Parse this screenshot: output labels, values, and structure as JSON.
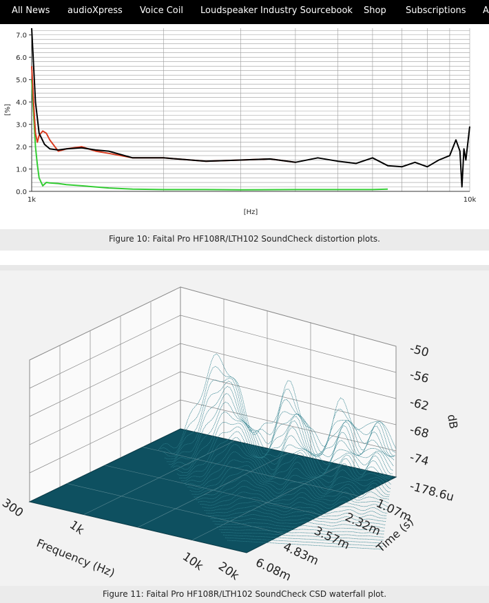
{
  "nav": {
    "items": [
      "All News",
      "audioXpress",
      "Voice Coil",
      "Loudspeaker Industry Sourcebook",
      "Shop",
      "Subscriptions",
      "A"
    ]
  },
  "figure10": {
    "caption": "Figure 10: Faital Pro HF108R/LTH102 SoundCheck distortion plots.",
    "colors": {
      "total": "#000000",
      "second": "#d93a1e",
      "third": "#33cc33"
    },
    "chart_data": {
      "type": "line",
      "x_scale": "log",
      "xlim": [
        1000,
        10000
      ],
      "ylim": [
        0,
        7.3
      ],
      "ylabel": "[%]",
      "xlabel": "[Hz]",
      "ytick_labels": [
        "0.0",
        "1.0",
        "2.0",
        "3.0",
        "4.0",
        "5.0",
        "6.0",
        "7.0"
      ],
      "xtick_labels": [
        "1k",
        "10k"
      ],
      "grid": true,
      "series": [
        {
          "x": [
            1000,
            1020,
            1040,
            1070,
            1100,
            1150,
            1200,
            1300,
            1400,
            1500,
            1700,
            2000,
            2500,
            3000,
            3500,
            4000,
            4500,
            5000,
            5500,
            6000,
            6500,
            7000,
            7500,
            8000,
            8500,
            9000,
            9300,
            9500,
            9600,
            9700,
            9800,
            10000
          ],
          "values": [
            7.3,
            4.0,
            2.6,
            2.1,
            1.9,
            1.85,
            1.9,
            1.95,
            1.85,
            1.8,
            1.5,
            1.5,
            1.35,
            1.4,
            1.45,
            1.3,
            1.5,
            1.35,
            1.25,
            1.5,
            1.15,
            1.1,
            1.3,
            1.1,
            1.4,
            1.6,
            2.3,
            1.8,
            0.2,
            1.9,
            1.4,
            2.9
          ]
        },
        {
          "x": [
            1000,
            1010,
            1020,
            1030,
            1040,
            1060,
            1080,
            1100,
            1150,
            1200,
            1300,
            1400,
            1500,
            1700,
            2000,
            2500,
            3000,
            3500,
            4000
          ],
          "values": [
            5.6,
            4.0,
            2.6,
            2.2,
            2.5,
            2.7,
            2.6,
            2.3,
            1.8,
            1.9,
            2.0,
            1.8,
            1.7,
            1.5,
            1.5,
            1.35,
            1.4,
            1.45,
            1.3
          ]
        },
        {
          "x": [
            1000,
            1010,
            1020,
            1030,
            1040,
            1060,
            1080,
            1100,
            1150,
            1200,
            1300,
            1500,
            1700,
            2000,
            2500,
            3000,
            4000,
            5000,
            6000,
            6500
          ],
          "values": [
            5.0,
            3.5,
            2.0,
            1.2,
            0.6,
            0.25,
            0.4,
            0.38,
            0.35,
            0.3,
            0.25,
            0.15,
            0.1,
            0.08,
            0.08,
            0.07,
            0.08,
            0.08,
            0.08,
            0.1
          ]
        }
      ]
    }
  },
  "figure11": {
    "caption": "Figure 11: Faital Pro HF108R/LTH102 SoundCheck CSD waterfall plot.",
    "colors": {
      "floor": "#0e5060",
      "trace": "#2d7f8c",
      "grid": "#888888"
    },
    "chart_data": {
      "type": "area",
      "zlabel": "dB",
      "z_tick_labels": [
        "-50",
        "-56",
        "-62",
        "-68",
        "-74",
        "-178.6u"
      ],
      "xlabel": "Frequency (Hz)",
      "x_tick_labels": [
        "300",
        "1k",
        "10k",
        "20k"
      ],
      "ylabel": "Time (s)",
      "y_tick_labels": [
        "1.07m",
        "2.32m",
        "3.57m",
        "4.83m",
        "6.08m"
      ]
    }
  }
}
